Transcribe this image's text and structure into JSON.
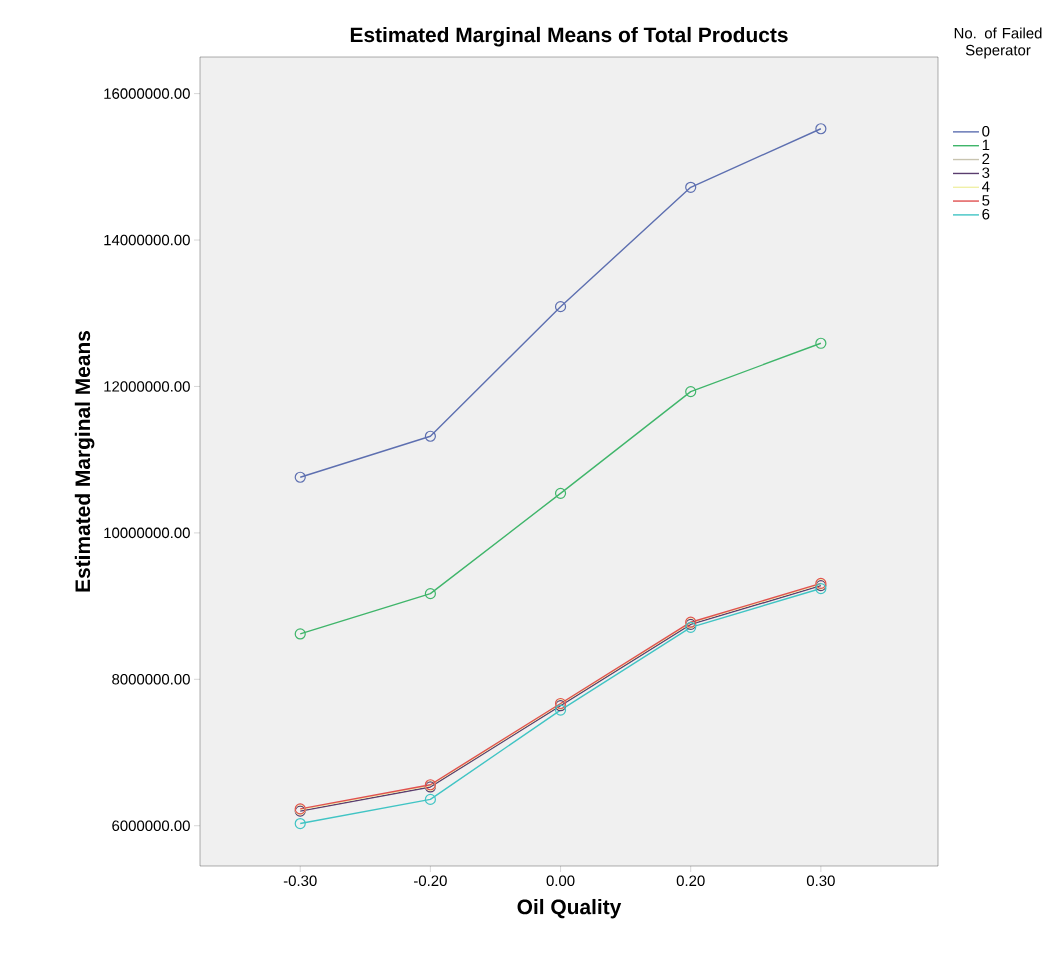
{
  "chart_data": {
    "type": "line",
    "title": "Estimated Marginal Means of Total Products",
    "xlabel": "Oil Quality",
    "ylabel": "Estimated Marginal Means",
    "legend_title": "No. of Failed Seperator",
    "categories": [
      "-0.30",
      "-0.20",
      "0.00",
      "0.20",
      "0.30"
    ],
    "ylim": [
      5450000,
      16500000
    ],
    "yticks": [
      {
        "value": 6000000,
        "label": "6000000.00"
      },
      {
        "value": 8000000,
        "label": "8000000.00"
      },
      {
        "value": 10000000,
        "label": "10000000.00"
      },
      {
        "value": 12000000,
        "label": "12000000.00"
      },
      {
        "value": 14000000,
        "label": "14000000.00"
      },
      {
        "value": 16000000,
        "label": "16000000.00"
      }
    ],
    "marker": "circle",
    "line_style": "solid",
    "legend": "right",
    "grid": false,
    "series": [
      {
        "name": "0",
        "color": "#5d6fb0",
        "values": [
          10760000,
          11320000,
          13090000,
          14720000,
          15520000
        ]
      },
      {
        "name": "1",
        "color": "#3fb56a",
        "values": [
          8620000,
          9170000,
          10540000,
          11930000,
          12590000
        ]
      },
      {
        "name": "2",
        "color": "#c8c4b0",
        "values": [
          null,
          null,
          null,
          null,
          null
        ]
      },
      {
        "name": "3",
        "color": "#5a3d6e",
        "values": [
          6200000,
          6530000,
          7640000,
          8750000,
          9280000
        ]
      },
      {
        "name": "4",
        "color": "#f0f0a8",
        "values": [
          6220000,
          6550000,
          7660000,
          8770000,
          9300000
        ]
      },
      {
        "name": "5",
        "color": "#e05050",
        "values": [
          6230000,
          6560000,
          7670000,
          8780000,
          9310000
        ]
      },
      {
        "name": "6",
        "color": "#40c4c4",
        "values": [
          6030000,
          6360000,
          7580000,
          8710000,
          9240000
        ]
      }
    ]
  }
}
